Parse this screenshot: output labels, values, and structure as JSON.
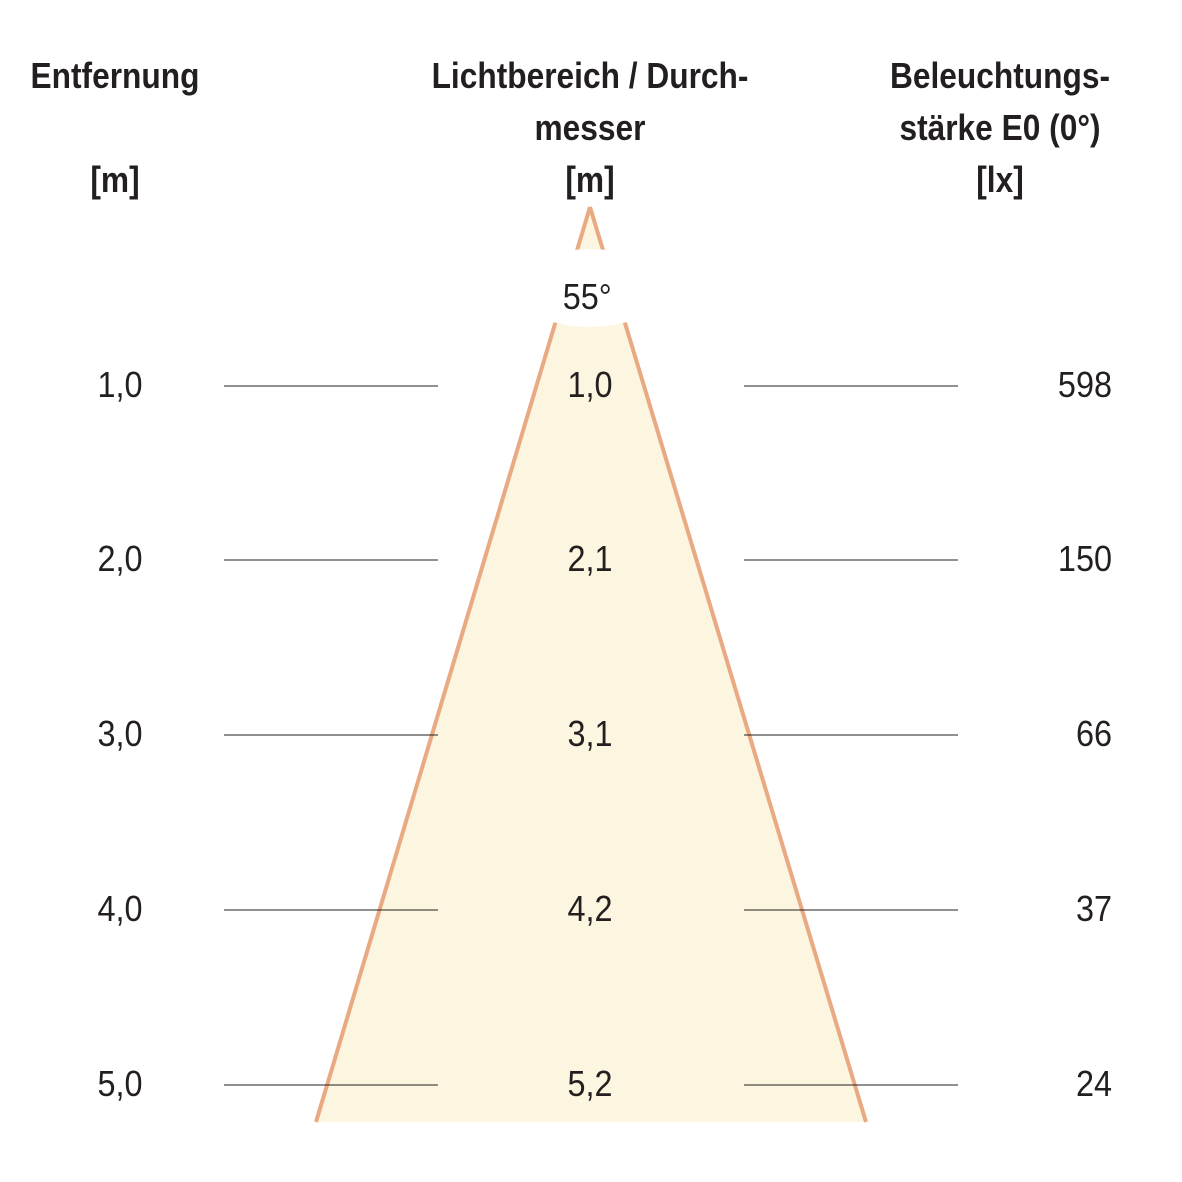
{
  "headers": {
    "distance": {
      "title": "Entfernung",
      "unit": "[m]"
    },
    "diameter": {
      "title_line1": "Lichtbereich / Durch-",
      "title_line2": "messer",
      "unit": "[m]"
    },
    "illuminance": {
      "title_line1": "Beleuchtungs-",
      "title_line2": "stärke E0 (0°)",
      "unit": "[lx]"
    }
  },
  "beam_angle": "55°",
  "rows": [
    {
      "distance": "1,0",
      "diameter": "1,0",
      "illuminance": "598"
    },
    {
      "distance": "2,0",
      "diameter": "2,1",
      "illuminance": "150"
    },
    {
      "distance": "3,0",
      "diameter": "3,1",
      "illuminance": "66"
    },
    {
      "distance": "4,0",
      "diameter": "4,2",
      "illuminance": "37"
    },
    {
      "distance": "5,0",
      "diameter": "5,2",
      "illuminance": "24"
    }
  ],
  "colors": {
    "cone_fill": "#fcf5df",
    "cone_edge": "#e9a983",
    "rule": "#231f20"
  }
}
